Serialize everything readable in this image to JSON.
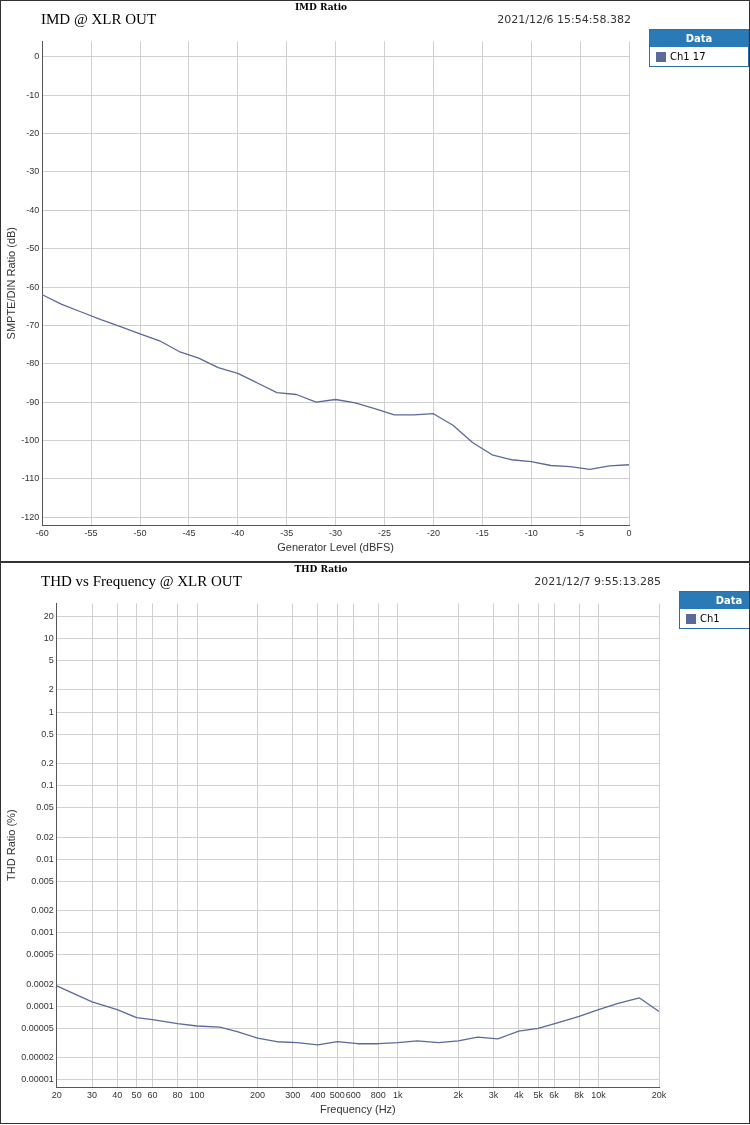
{
  "chart_data": [
    {
      "type": "line",
      "subtitle": "IMD Ratio",
      "title": "IMD @ XLR OUT",
      "annotations": [
        "2021/12/6 15:54:58.382"
      ],
      "xlabel": "Generator Level (dBFS)",
      "ylabel": "SMPTE/DIN Ratio (dB)",
      "legend_title": "Data",
      "legend": "right",
      "grid": true,
      "marker": "none",
      "line_style": "solid",
      "xlim": [
        -60,
        0
      ],
      "xticks": [
        -60,
        -55,
        -50,
        -45,
        -40,
        -35,
        -30,
        -25,
        -20,
        -15,
        -10,
        -5,
        0
      ],
      "ylim": [
        -122,
        4
      ],
      "yticks": [
        -120,
        -110,
        -100,
        -90,
        -80,
        -70,
        -60,
        -50,
        -40,
        -30,
        -20,
        -10,
        0
      ],
      "series": [
        {
          "name": "Ch1 17",
          "color": "#5a6a9a",
          "x": [
            -60,
            -58,
            -56,
            -54,
            -52,
            -50,
            -48,
            -46,
            -44,
            -42,
            -40,
            -38,
            -36,
            -34,
            -32,
            -30,
            -28,
            -26,
            -24,
            -22,
            -20,
            -18,
            -16,
            -14,
            -12,
            -10,
            -8,
            -6,
            -4,
            -2,
            0
          ],
          "values": [
            -62,
            -64.5,
            -66.5,
            -68.5,
            -70.3,
            -72.2,
            -74,
            -76.8,
            -78.5,
            -81,
            -82.5,
            -85,
            -87.5,
            -88,
            -90,
            -89.3,
            -90.2,
            -91.7,
            -93.3,
            -93.3,
            -93,
            -96,
            -100.5,
            -103.7,
            -105,
            -105.5,
            -106.5,
            -106.8,
            -107.5,
            -106.6,
            -106.3
          ]
        }
      ]
    },
    {
      "type": "line",
      "subtitle": "THD Ratio",
      "title": "THD vs Frequency @ XLR OUT",
      "annotations": [
        "2021/12/7 9:55:13.285"
      ],
      "xlabel": "Frequency (Hz)",
      "ylabel": "THD Ratio (%)",
      "legend_title": "Data",
      "legend": "right",
      "grid": true,
      "marker": "none",
      "line_style": "solid",
      "log": "xy",
      "xlim": [
        20,
        20000
      ],
      "xticks": [
        20,
        30,
        40,
        50,
        60,
        80,
        100,
        200,
        300,
        400,
        500,
        600,
        800,
        {
          "value": 1000,
          "label": "1k"
        },
        {
          "value": 2000,
          "label": "2k"
        },
        {
          "value": 3000,
          "label": "3k"
        },
        {
          "value": 4000,
          "label": "4k"
        },
        {
          "value": 5000,
          "label": "5k"
        },
        {
          "value": 6000,
          "label": "6k"
        },
        {
          "value": 8000,
          "label": "8k"
        },
        {
          "value": 10000,
          "label": "10k"
        },
        {
          "value": 20000,
          "label": "20k"
        }
      ],
      "ylim": [
        8e-06,
        30
      ],
      "yticks": [
        20,
        10,
        5,
        2,
        1,
        0.5,
        0.2,
        0.1,
        0.05,
        0.02,
        0.01,
        0.005,
        0.002,
        0.001,
        0.0005,
        0.0002,
        0.0001,
        {
          "value": 5e-05,
          "label": "0.00005"
        },
        {
          "value": 2e-05,
          "label": "0.00002"
        },
        {
          "value": 1e-05,
          "label": "0.00001"
        }
      ],
      "series": [
        {
          "name": "Ch1",
          "color": "#5a6a9a",
          "x": [
            20,
            30,
            40,
            50,
            60,
            80,
            100,
            130,
            160,
            200,
            250,
            315,
            400,
            500,
            630,
            800,
            1000,
            1250,
            1600,
            2000,
            2500,
            3150,
            4000,
            5000,
            6300,
            8000,
            10000,
            12500,
            16000,
            20000
          ],
          "values": [
            0.00019,
            0.000115,
            9e-05,
            7e-05,
            6.6e-05,
            5.8e-05,
            5.4e-05,
            5.2e-05,
            4.5e-05,
            3.7e-05,
            3.3e-05,
            3.2e-05,
            3e-05,
            3.3e-05,
            3.1e-05,
            3.1e-05,
            3.2e-05,
            3.4e-05,
            3.2e-05,
            3.4e-05,
            3.8e-05,
            3.6e-05,
            4.6e-05,
            5e-05,
            6e-05,
            7.3e-05,
            9e-05,
            0.00011,
            0.00013,
            8.5e-05
          ]
        }
      ]
    }
  ]
}
